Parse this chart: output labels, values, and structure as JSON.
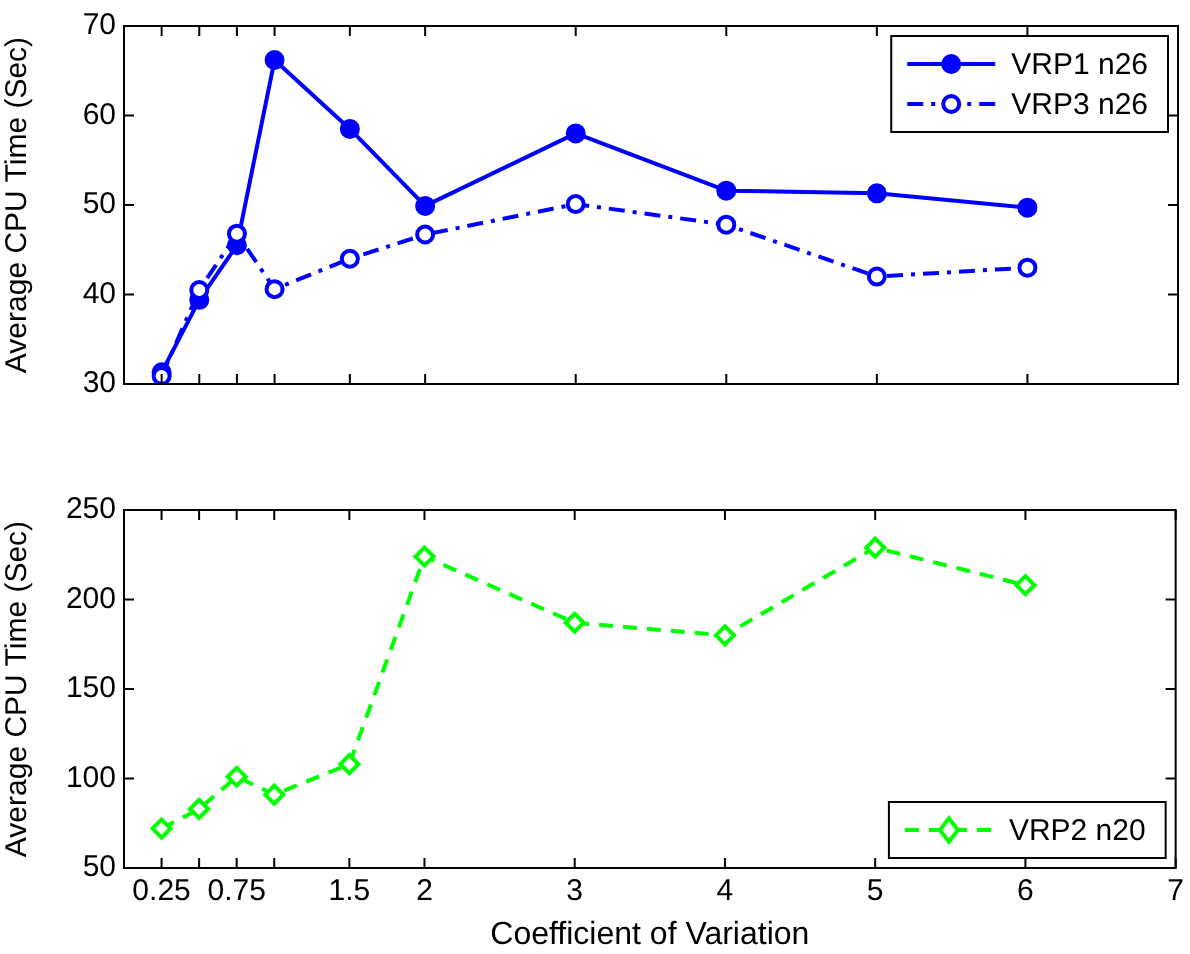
{
  "chart_data": [
    {
      "type": "line",
      "ylabel": "Average CPU Time (Sec)",
      "x": [
        0.25,
        0.5,
        0.75,
        1,
        1.5,
        2,
        3,
        4,
        5,
        6
      ],
      "xlim": [
        0,
        7
      ],
      "xticks": [
        {
          "value": 0.25,
          "label": null
        },
        {
          "value": 0.5,
          "label": null
        },
        {
          "value": 0.75,
          "label": null
        },
        {
          "value": 1,
          "label": null
        },
        {
          "value": 1.5,
          "label": null
        },
        {
          "value": 2,
          "label": null
        },
        {
          "value": 3,
          "label": null
        },
        {
          "value": 4,
          "label": null
        },
        {
          "value": 5,
          "label": null
        },
        {
          "value": 6,
          "label": null
        },
        {
          "value": 7,
          "label": null
        }
      ],
      "ylim": [
        30,
        70
      ],
      "yticks": [
        30,
        40,
        50,
        60,
        70
      ],
      "tick_labels": "y",
      "legend": "top right",
      "series": [
        {
          "name": "VRP1 n26",
          "color": "#0000ff",
          "marker": "circle",
          "line_style": "solid",
          "values": [
            31.3,
            39.4,
            45.5,
            66.2,
            58.5,
            49.9,
            58.0,
            51.6,
            51.3,
            49.7
          ]
        },
        {
          "name": "VRP3 n26",
          "color": "#0000ff",
          "marker": "circle",
          "line_style": "dashdot",
          "values": [
            30.9,
            40.5,
            46.8,
            40.6,
            44.0,
            46.7,
            50.1,
            47.8,
            42.0,
            43.0
          ]
        }
      ]
    },
    {
      "type": "line",
      "ylabel": "Average CPU Time (Sec)",
      "xlabel": "Coefficient of Variation",
      "x": [
        0.25,
        0.5,
        0.75,
        1,
        1.5,
        2,
        3,
        4,
        5,
        6
      ],
      "xlim": [
        0,
        7
      ],
      "xticks": [
        0.25,
        {
          "value": 0.5,
          "label": null
        },
        0.75,
        {
          "value": 1,
          "label": null
        },
        1.5,
        2,
        3,
        4,
        5,
        6,
        7
      ],
      "ylim": [
        50,
        250
      ],
      "yticks": [
        50,
        100,
        150,
        200,
        250
      ],
      "legend": "bottom right",
      "series": [
        {
          "name": "VRP2 n20",
          "color": "#00ff00",
          "marker": "diamond",
          "line_style": "dashed",
          "values": [
            72,
            83,
            101,
            91,
            108,
            224,
            187,
            180,
            229,
            208
          ]
        }
      ]
    }
  ]
}
